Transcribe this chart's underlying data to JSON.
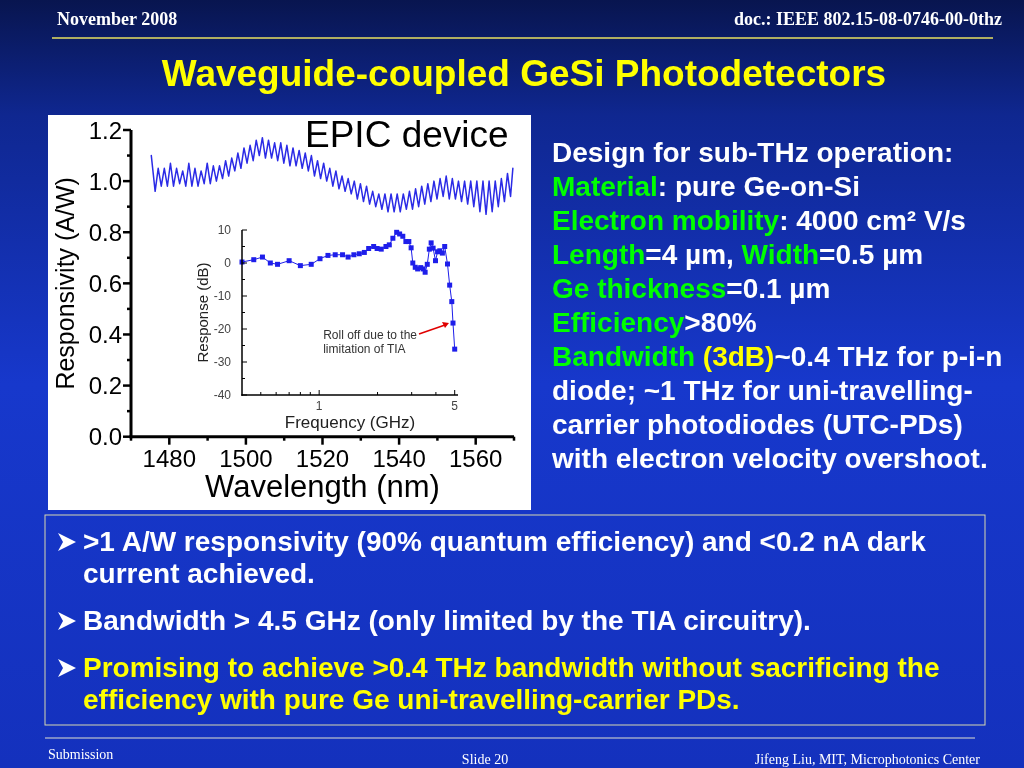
{
  "chart_data": [
    {
      "type": "line",
      "title": "Waveguide-coupled GeSi Photodetectors",
      "xlabel": "Wavelength (nm)",
      "ylabel": "Responsivity (A/W)",
      "color": "#2b2be6",
      "x": [
        1475.3,
        1476.3,
        1477.1,
        1477.9,
        1478.7,
        1479.5,
        1480.3,
        1481.1,
        1481.9,
        1482.7,
        1483.5,
        1484.3,
        1485.1,
        1485.9,
        1486.7,
        1487.5,
        1488.3,
        1489.1,
        1489.9,
        1490.7,
        1491.5,
        1492.3,
        1493.1,
        1493.9,
        1494.7,
        1495.5,
        1496.3,
        1497.1,
        1497.9,
        1498.7,
        1499.5,
        1500.3,
        1501.1,
        1501.9,
        1502.7,
        1503.5,
        1504.3,
        1505.1,
        1505.9,
        1506.7,
        1507.5,
        1508.3,
        1509.1,
        1509.9,
        1510.7,
        1511.5,
        1512.3,
        1513.1,
        1513.9,
        1514.7,
        1515.5,
        1516.3,
        1517.1,
        1517.9,
        1518.7,
        1519.5,
        1520.3,
        1521.1,
        1521.9,
        1522.7,
        1523.5,
        1524.3,
        1525.1,
        1525.9,
        1526.7,
        1527.5,
        1528.3,
        1529.1,
        1529.9,
        1530.7,
        1531.5,
        1532.3,
        1533.1,
        1533.9,
        1534.7,
        1535.5,
        1536.3,
        1537.1,
        1537.9,
        1538.7,
        1539.5,
        1540.3,
        1541.1,
        1541.9,
        1542.7,
        1543.5,
        1544.3,
        1545.1,
        1545.9,
        1546.7,
        1547.5,
        1548.3,
        1549.1,
        1549.9,
        1550.7,
        1551.5,
        1552.3,
        1553.1,
        1553.9,
        1554.7,
        1555.5,
        1556.3,
        1557.1,
        1557.9,
        1558.7,
        1559.5,
        1560.3,
        1561.1,
        1561.9,
        1562.7,
        1563.5,
        1564.3,
        1565.1,
        1565.9,
        1566.7,
        1567.5,
        1568.3,
        1569.1,
        1569.7
      ],
      "values": [
        1.1,
        0.96,
        1.05,
        0.98,
        1.05,
        0.98,
        1.07,
        0.98,
        1.05,
        0.99,
        1.04,
        0.98,
        1.07,
        0.98,
        1.05,
        0.98,
        1.04,
        0.99,
        1.07,
        0.99,
        1.06,
        1.0,
        1.06,
        1.01,
        1.08,
        1.02,
        1.09,
        1.04,
        1.11,
        1.05,
        1.13,
        1.07,
        1.14,
        1.08,
        1.16,
        1.1,
        1.17,
        1.09,
        1.16,
        1.09,
        1.15,
        1.08,
        1.15,
        1.07,
        1.14,
        1.06,
        1.13,
        1.06,
        1.12,
        1.05,
        1.11,
        1.04,
        1.1,
        1.02,
        1.08,
        1.01,
        1.07,
        1.0,
        1.05,
        0.98,
        1.04,
        0.97,
        1.02,
        0.96,
        1.01,
        0.95,
        1.0,
        0.93,
        0.99,
        0.92,
        0.98,
        0.91,
        0.96,
        0.9,
        0.95,
        0.89,
        0.95,
        0.88,
        0.95,
        0.88,
        0.95,
        0.88,
        0.95,
        0.89,
        0.96,
        0.89,
        0.97,
        0.9,
        0.98,
        0.91,
        0.99,
        0.92,
        1.0,
        0.93,
        1.01,
        0.94,
        1.02,
        0.93,
        1.01,
        0.93,
        1.0,
        0.92,
        1.0,
        0.91,
        1.0,
        0.9,
        1.0,
        0.88,
        1.0,
        0.87,
        1.0,
        0.88,
        1.0,
        0.9,
        1.01,
        0.92,
        1.03,
        0.94,
        1.05
      ],
      "xlim": [
        1470,
        1570
      ],
      "xticks": [
        {
          "value": 1470,
          "label": null
        },
        1480,
        {
          "value": 1490,
          "label": null
        },
        1500,
        {
          "value": 1510,
          "label": null
        },
        1520,
        {
          "value": 1530,
          "label": null
        },
        1540,
        {
          "value": 1550,
          "label": null
        },
        1560,
        {
          "value": 1570,
          "label": null
        }
      ],
      "ylim": [
        0,
        1.2
      ],
      "yticks": [
        {
          "value": 0,
          "label": "0.0"
        },
        {
          "value": 0.1,
          "label": null
        },
        0.2,
        {
          "value": 0.3,
          "label": null
        },
        0.4,
        {
          "value": 0.5,
          "label": null
        },
        0.6,
        {
          "value": 0.7,
          "label": null
        },
        0.8,
        {
          "value": 0.9,
          "label": null
        },
        {
          "value": 1,
          "label": "1.0"
        },
        {
          "value": 1.1,
          "label": null
        },
        1.2
      ],
      "annotations": [
        "November 2008",
        "doc.: IEEE 802.15-08-0746-00-0thz",
        "EPIC device",
        "Design for sub-THz operation:",
        "Material: pure Ge-on-Si",
        "Electron mobility: 4000 cm² V/s",
        "Length=4 µm, Width=0.5 µm",
        "Ge thickness=0.1 µm",
        "Efficiency>80%",
        "Bandwidth (3dB)~0.4 THz for p-i-n diode; ~1 THz for uni-travelling-carrier photodiodes (UTC-PDs) with electron velocity overshoot.",
        ">1 A/W responsivity (90% quantum efficiency) and <0.2 nA dark current achieved.",
        "Bandwidth > 4.5 GHz (only limited by the TIA circuitry).",
        "Promising to achieve >0.4 THz bandwidth without sacrificing the efficiency with pure Ge uni-travelling-carrier PDs.",
        "Submission",
        "Slide 20",
        "Jifeng Liu, MIT, Microphotonics Center"
      ]
    },
    {
      "type": "line",
      "xlabel": "Frequency (GHz)",
      "ylabel": "Response (dB)",
      "color": "#1e1eea",
      "marker": "square",
      "log": "x",
      "x": [
        0.4,
        0.46,
        0.51,
        0.56,
        0.61,
        0.7,
        0.8,
        0.91,
        1.01,
        1.11,
        1.21,
        1.32,
        1.41,
        1.51,
        1.61,
        1.71,
        1.8,
        1.91,
        1.99,
        2.09,
        2.21,
        2.3,
        2.4,
        2.51,
        2.6,
        2.7,
        2.8,
        2.9,
        2.98,
        3.04,
        3.13,
        3.22,
        3.34,
        3.44,
        3.52,
        3.61,
        3.7,
        3.78,
        3.87,
        3.98,
        4.08,
        4.19,
        4.32,
        4.44,
        4.59,
        4.71,
        4.83,
        4.9,
        5.0
      ],
      "values": [
        0.3,
        1,
        1.8,
        0,
        -0.4,
        0.7,
        -0.8,
        -0.4,
        1.3,
        2.3,
        2.5,
        2.5,
        1.8,
        2.5,
        2.8,
        3.2,
        4.4,
        5,
        4.4,
        4.2,
        5,
        5.5,
        7.5,
        9.3,
        8.8,
        8.1,
        6.5,
        6.5,
        4.6,
        0,
        -1.3,
        -1.8,
        -1.4,
        -1.8,
        -2.8,
        -0.4,
        4.2,
        6.1,
        4.5,
        0.7,
        3.4,
        3.7,
        3,
        5,
        -0.3,
        -6.7,
        -11.7,
        -18.2,
        -26.1
      ],
      "xlim": [
        0.4,
        5.2
      ],
      "xticks": [
        {
          "value": 0.5,
          "label": null
        },
        {
          "value": 0.6,
          "label": null
        },
        {
          "value": 0.7,
          "label": null
        },
        {
          "value": 0.8,
          "label": null
        },
        {
          "value": 0.9,
          "label": null
        },
        1,
        {
          "value": 2,
          "label": null
        },
        {
          "value": 3,
          "label": null
        },
        {
          "value": 4,
          "label": null
        },
        5
      ],
      "ylim": [
        -40,
        10
      ],
      "yticks": [
        -40,
        {
          "value": -35,
          "label": null
        },
        -30,
        {
          "value": -25,
          "label": null
        },
        -20,
        {
          "value": -15,
          "label": null
        },
        -10,
        {
          "value": -5,
          "label": null
        },
        0,
        {
          "value": 5,
          "label": null
        },
        10
      ],
      "annotations": [
        {
          "text": "Roll off due to the limitation of TIA",
          "x": 4.9,
          "y": -18.2
        }
      ]
    }
  ]
}
